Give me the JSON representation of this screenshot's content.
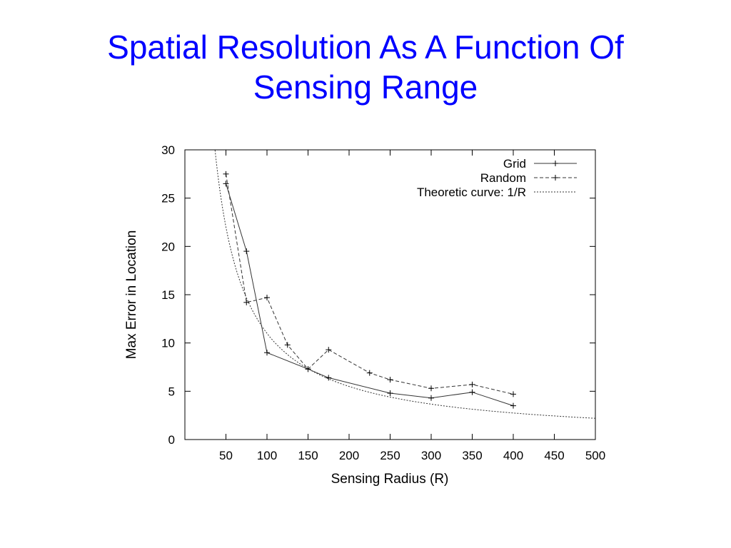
{
  "slide": {
    "title_line1": "Spatial Resolution As A Function Of",
    "title_line2": "Sensing Range"
  },
  "colors": {
    "title": "#0000ff",
    "axes": "#000000",
    "series": "#333333"
  },
  "chart_data": {
    "type": "line",
    "title": "",
    "xlabel": "Sensing Radius (R)",
    "ylabel": "Max Error in Location",
    "xlim": [
      0,
      500
    ],
    "ylim": [
      0,
      30
    ],
    "xticks": [
      50,
      100,
      150,
      200,
      250,
      300,
      350,
      400,
      450,
      500
    ],
    "yticks": [
      0,
      5,
      10,
      15,
      20,
      25,
      30
    ],
    "grid": false,
    "legend": "top-right",
    "series": [
      {
        "name": "Grid",
        "style": "solid",
        "marker": "+",
        "x": [
          50,
          75,
          100,
          150,
          175,
          250,
          300,
          350,
          400
        ],
        "y": [
          26.5,
          19.5,
          9.0,
          7.3,
          6.4,
          4.8,
          4.3,
          4.9,
          3.5
        ]
      },
      {
        "name": "Random",
        "style": "dashed",
        "marker": "+",
        "x": [
          50,
          75,
          100,
          125,
          150,
          175,
          225,
          250,
          300,
          350,
          400
        ],
        "y": [
          27.5,
          14.2,
          14.7,
          9.8,
          7.3,
          9.3,
          6.9,
          6.2,
          5.3,
          5.7,
          4.7
        ]
      },
      {
        "name": "Theoretic curve: 1/R",
        "style": "dotted",
        "marker": "none",
        "function": "1/R",
        "constant": 1100,
        "domain": [
          36,
          500
        ]
      }
    ]
  }
}
